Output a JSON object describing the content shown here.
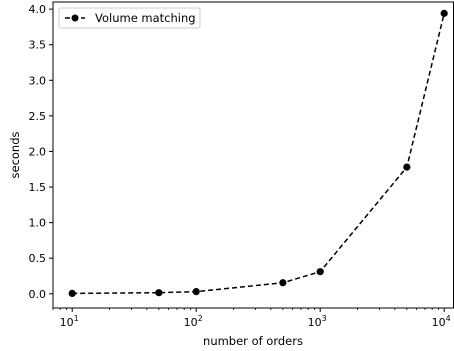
{
  "chart_data": {
    "type": "line",
    "xscale": "log",
    "x_tick_base": "10",
    "xlim": [
      7,
      12000
    ],
    "ylim": [
      -0.2,
      4.1
    ],
    "xlabel": "number of orders",
    "ylabel": "seconds",
    "grid": false,
    "legend_position": "upper-left",
    "x_tick_exponents": [
      "1",
      "2",
      "3",
      "4"
    ],
    "x_tick_values": [
      10,
      100,
      1000,
      10000
    ],
    "y_ticks": [
      0.0,
      0.5,
      1.0,
      1.5,
      2.0,
      2.5,
      3.0,
      3.5,
      4.0
    ],
    "y_tick_labels": [
      "0.0",
      "0.5",
      "1.0",
      "1.5",
      "2.0",
      "2.5",
      "3.0",
      "3.5",
      "4.0"
    ],
    "series": [
      {
        "name": "Volume matching",
        "color": "#000000",
        "line_style": "dashed",
        "marker": "circle",
        "x": [
          10,
          50,
          100,
          500,
          1000,
          5000,
          10000
        ],
        "y": [
          0.005,
          0.015,
          0.03,
          0.155,
          0.31,
          1.78,
          3.94
        ]
      }
    ]
  }
}
